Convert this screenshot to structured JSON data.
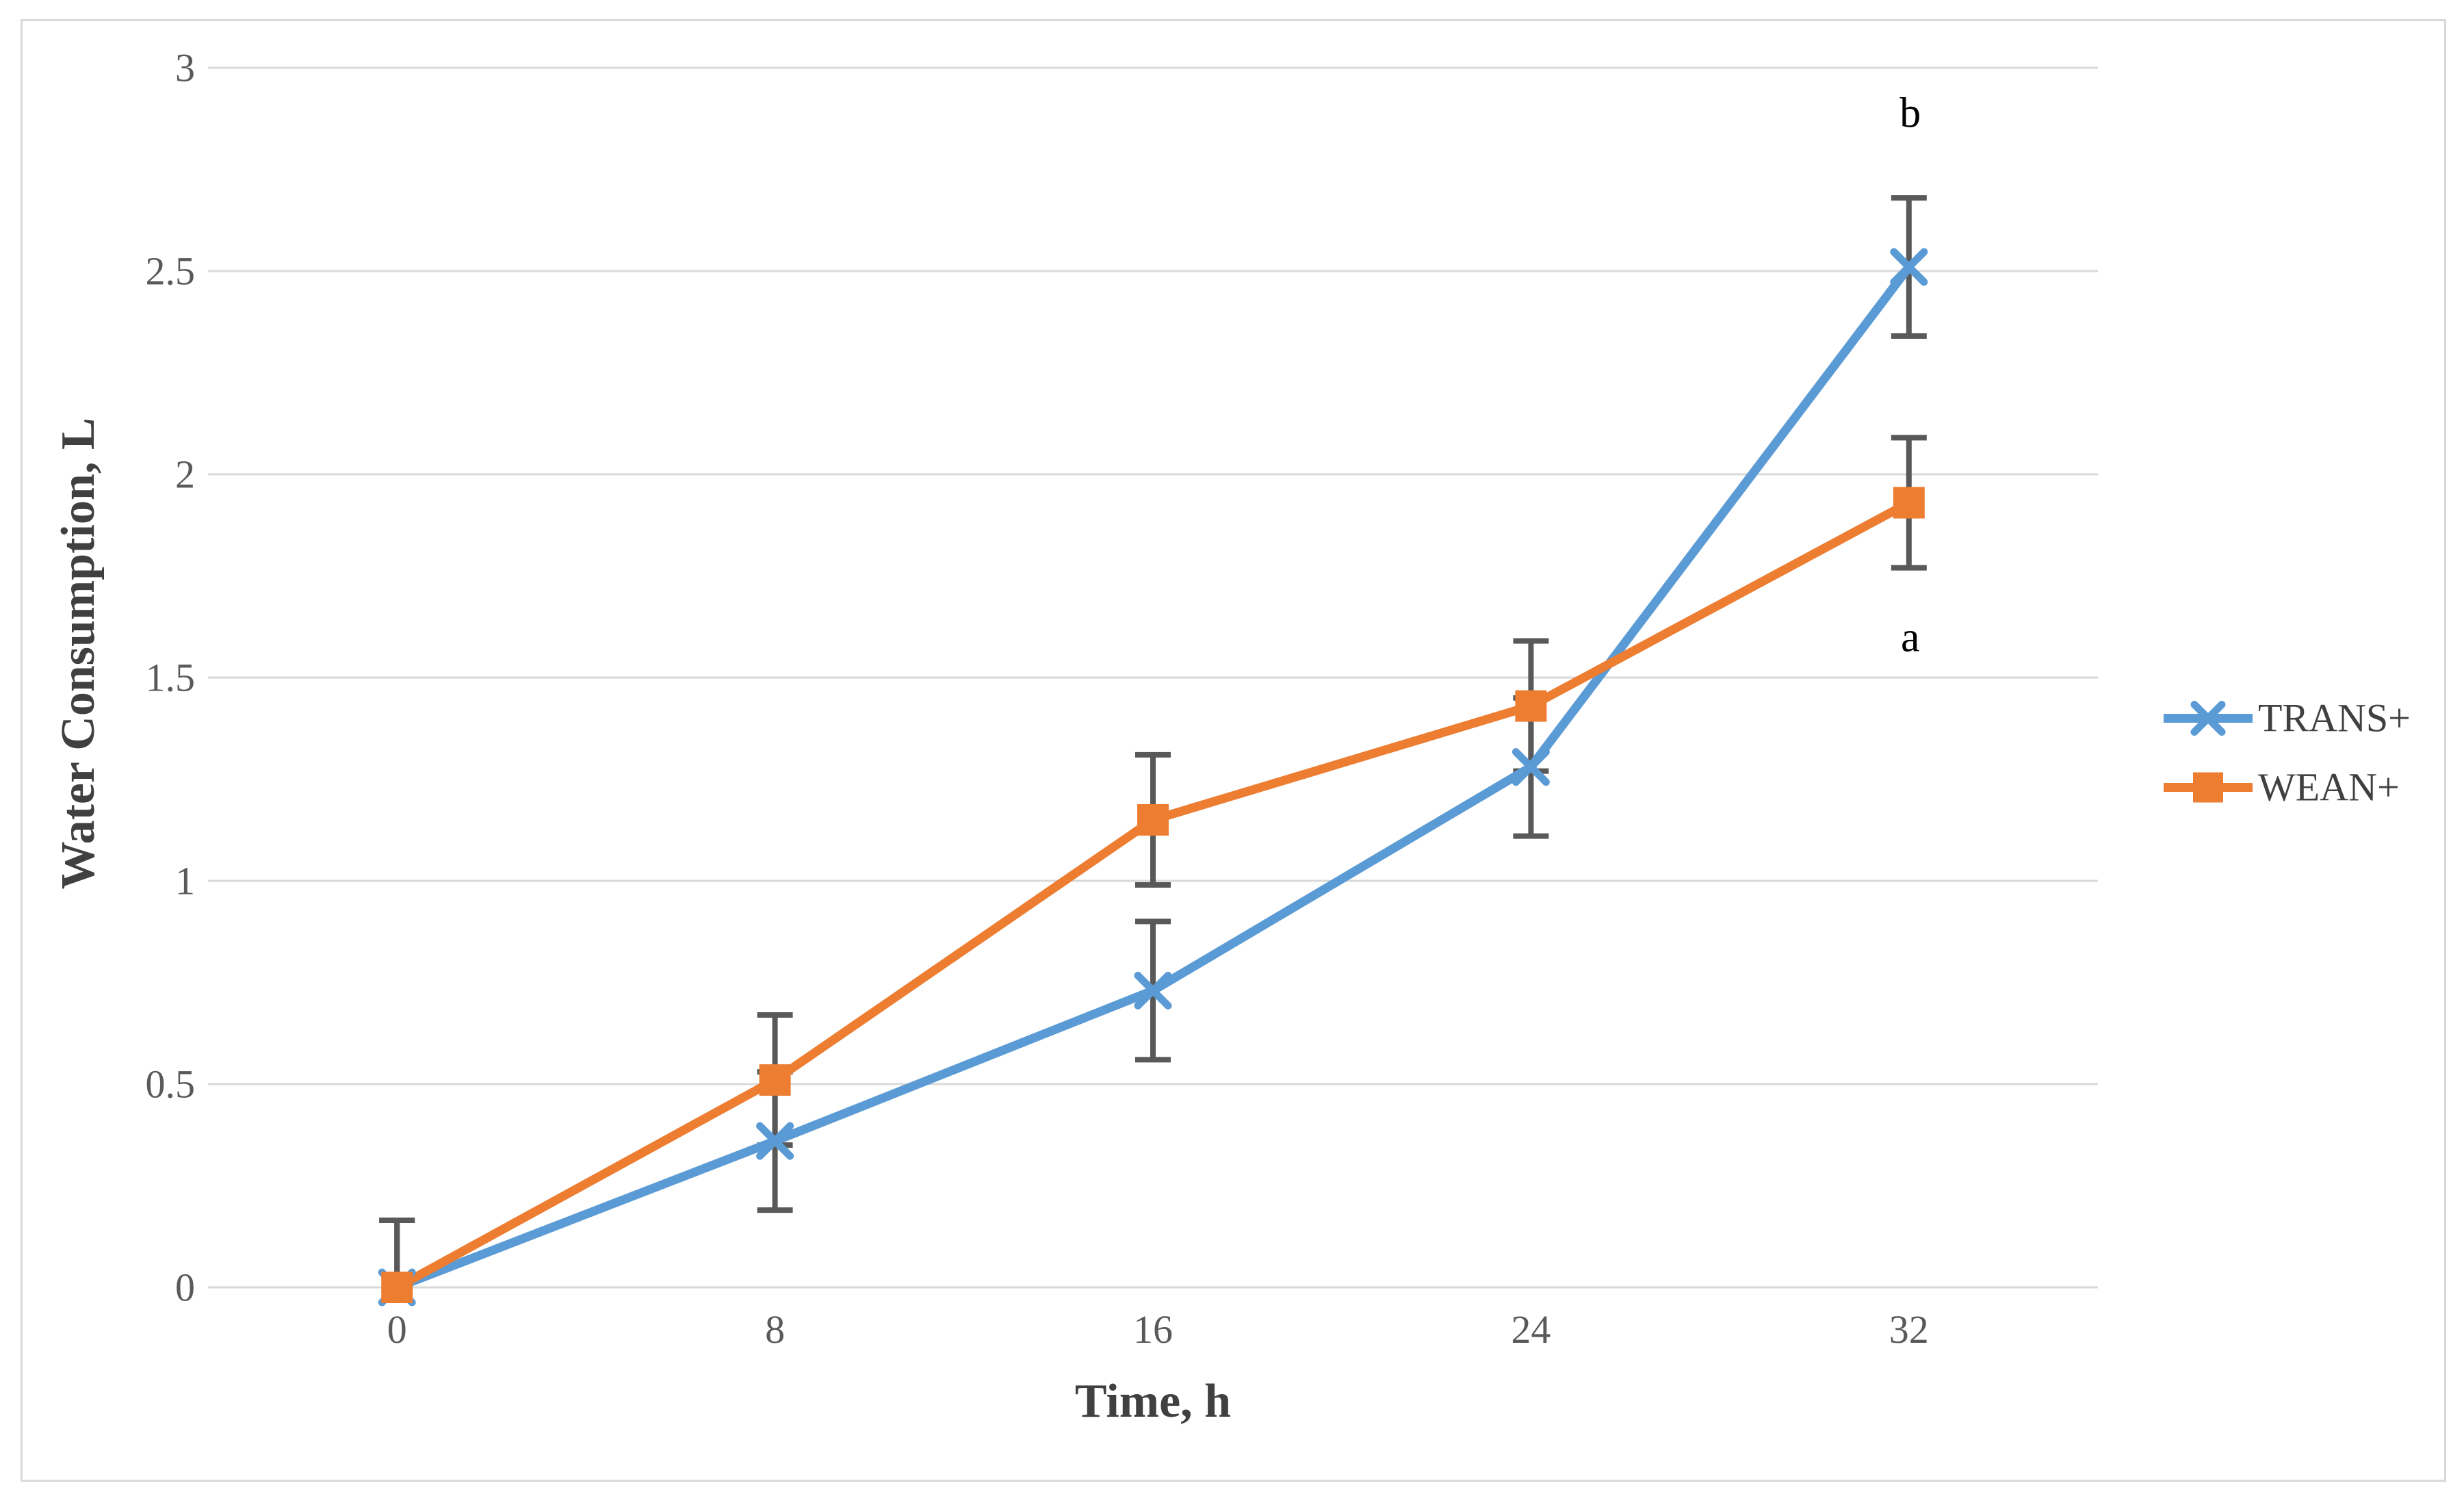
{
  "chart_data": {
    "type": "line",
    "title": "",
    "xlabel": "Time, h",
    "ylabel": "Water Consumption, L",
    "categories": [
      "0",
      "8",
      "16",
      "24",
      "32"
    ],
    "y_ticks": [
      "0",
      "0.5",
      "1",
      "1.5",
      "2",
      "2.5",
      "3"
    ],
    "ylim": [
      0,
      3
    ],
    "grid": "horizontal",
    "legend_position": "right",
    "series": [
      {
        "name": "TRANS+",
        "color": "#5B9BD5",
        "marker": "x",
        "values": [
          0,
          0.36,
          0.73,
          1.28,
          2.51
        ],
        "errors": [
          0.165,
          0.17,
          0.17,
          0.17,
          0.17
        ]
      },
      {
        "name": "WEAN+",
        "color": "#ED7D31",
        "marker": "square",
        "values": [
          0,
          0.51,
          1.15,
          1.43,
          1.93
        ],
        "errors": [
          0.165,
          0.16,
          0.16,
          0.16,
          0.16
        ]
      }
    ],
    "annotations": [
      {
        "text": "b",
        "category_index": 4,
        "value": 2.89
      },
      {
        "text": "a",
        "category_index": 4,
        "value": 1.6
      }
    ],
    "colors": {
      "error_bar": "#595959",
      "gridline": "#D9D9D9",
      "tick_label": "#595959",
      "axis_title": "#404040",
      "legend_text": "#404040",
      "annotation": "#000000",
      "chart_border": "#D9D9D9",
      "background": "#FFFFFF"
    }
  }
}
